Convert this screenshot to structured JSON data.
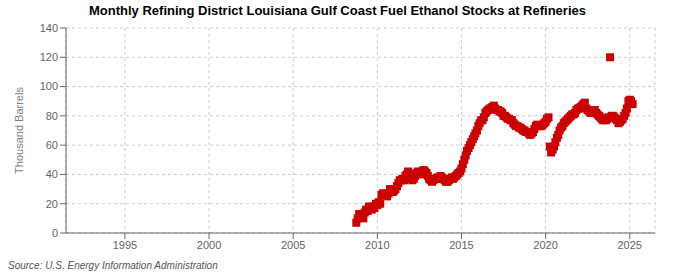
{
  "chart_data": {
    "type": "scatter",
    "title": "Monthly Refining District Louisiana Gulf Coast Fuel Ethanol Stocks at Refineries",
    "ylabel": "Thousand Barrels",
    "source": "Source: U.S. Energy Information Administration",
    "color": "#cc0000",
    "marker": "square",
    "grid": true,
    "xlim": [
      1991.5,
      2026.5
    ],
    "xticks": [
      1995,
      2000,
      2005,
      2010,
      2015,
      2020,
      2025
    ],
    "ylim": [
      0,
      140
    ],
    "yticks": [
      0,
      20,
      40,
      60,
      80,
      100,
      120,
      140
    ],
    "x": [
      2008.75,
      2008.83,
      2008.92,
      2009.0,
      2009.08,
      2009.17,
      2009.25,
      2009.33,
      2009.42,
      2009.5,
      2009.58,
      2009.67,
      2009.75,
      2009.83,
      2009.92,
      2010.0,
      2010.08,
      2010.17,
      2010.25,
      2010.33,
      2010.42,
      2010.5,
      2010.58,
      2010.67,
      2010.75,
      2010.83,
      2010.92,
      2011.0,
      2011.08,
      2011.17,
      2011.25,
      2011.33,
      2011.42,
      2011.5,
      2011.58,
      2011.67,
      2011.75,
      2011.83,
      2011.92,
      2012.0,
      2012.08,
      2012.17,
      2012.25,
      2012.33,
      2012.42,
      2012.5,
      2012.58,
      2012.67,
      2012.75,
      2012.83,
      2012.92,
      2013.0,
      2013.08,
      2013.17,
      2013.25,
      2013.33,
      2013.42,
      2013.5,
      2013.58,
      2013.67,
      2013.75,
      2013.83,
      2013.92,
      2014.0,
      2014.08,
      2014.17,
      2014.25,
      2014.33,
      2014.42,
      2014.5,
      2014.58,
      2014.67,
      2014.75,
      2014.83,
      2014.92,
      2015.0,
      2015.08,
      2015.17,
      2015.25,
      2015.33,
      2015.42,
      2015.5,
      2015.58,
      2015.67,
      2015.75,
      2015.83,
      2015.92,
      2016.0,
      2016.08,
      2016.17,
      2016.25,
      2016.33,
      2016.42,
      2016.5,
      2016.58,
      2016.67,
      2016.75,
      2016.83,
      2016.92,
      2017.0,
      2017.08,
      2017.17,
      2017.25,
      2017.33,
      2017.42,
      2017.5,
      2017.58,
      2017.67,
      2017.75,
      2017.83,
      2017.92,
      2018.0,
      2018.08,
      2018.17,
      2018.25,
      2018.33,
      2018.42,
      2018.5,
      2018.58,
      2018.67,
      2018.75,
      2018.83,
      2018.92,
      2019.0,
      2019.08,
      2019.17,
      2019.25,
      2019.33,
      2019.42,
      2019.5,
      2019.58,
      2019.67,
      2019.75,
      2019.83,
      2019.92,
      2020.0,
      2020.08,
      2020.17,
      2020.25,
      2020.33,
      2020.42,
      2020.5,
      2020.58,
      2020.67,
      2020.75,
      2020.83,
      2020.92,
      2021.0,
      2021.08,
      2021.17,
      2021.25,
      2021.33,
      2021.42,
      2021.5,
      2021.58,
      2021.67,
      2021.75,
      2021.83,
      2021.92,
      2022.0,
      2022.08,
      2022.17,
      2022.25,
      2022.33,
      2022.42,
      2022.5,
      2022.58,
      2022.67,
      2022.75,
      2022.83,
      2022.92,
      2023.0,
      2023.08,
      2023.17,
      2023.25,
      2023.33,
      2023.42,
      2023.5,
      2023.58,
      2023.67,
      2023.75,
      2023.83,
      2023.92,
      2024.0,
      2024.08,
      2024.17,
      2024.25,
      2024.33,
      2024.42,
      2024.5,
      2024.58,
      2024.67,
      2024.75,
      2024.83,
      2024.92,
      2025.0,
      2025.08,
      2025.17
    ],
    "values": [
      7,
      10,
      13,
      13,
      12,
      10,
      14,
      16,
      15,
      18,
      18,
      16,
      18,
      17,
      20,
      19,
      21,
      20,
      26,
      27,
      27,
      26,
      25,
      27,
      30,
      29,
      28,
      29,
      30,
      32,
      34,
      36,
      36,
      37,
      36,
      39,
      40,
      42,
      40,
      37,
      36,
      37,
      39,
      41,
      42,
      41,
      40,
      42,
      43,
      42,
      41,
      39,
      37,
      36,
      35,
      36,
      37,
      37,
      38,
      37,
      39,
      38,
      37,
      36,
      35,
      35,
      36,
      37,
      38,
      37,
      38,
      39,
      40,
      41,
      42,
      44,
      47,
      50,
      53,
      56,
      58,
      60,
      62,
      64,
      66,
      68,
      70,
      73,
      75,
      77,
      77,
      79,
      82,
      83,
      84,
      85,
      85,
      86,
      87,
      85,
      84,
      84,
      83,
      83,
      82,
      80,
      80,
      79,
      78,
      78,
      77,
      77,
      75,
      74,
      73,
      73,
      72,
      72,
      71,
      70,
      70,
      69,
      69,
      68,
      67,
      68,
      69,
      71,
      73,
      74,
      73,
      73,
      73,
      74,
      75,
      76,
      78,
      79,
      59,
      55,
      57,
      59,
      62,
      65,
      67,
      70,
      72,
      73,
      75,
      76,
      77,
      78,
      79,
      80,
      81,
      81,
      82,
      84,
      85,
      85,
      86,
      87,
      88,
      89,
      85,
      84,
      83,
      82,
      82,
      83,
      84,
      82,
      81,
      80,
      79,
      78,
      77,
      78,
      77,
      78,
      79,
      120,
      80,
      80,
      79,
      78,
      77,
      75,
      76,
      77,
      78,
      80,
      82,
      85,
      90,
      91,
      90,
      88
    ]
  }
}
